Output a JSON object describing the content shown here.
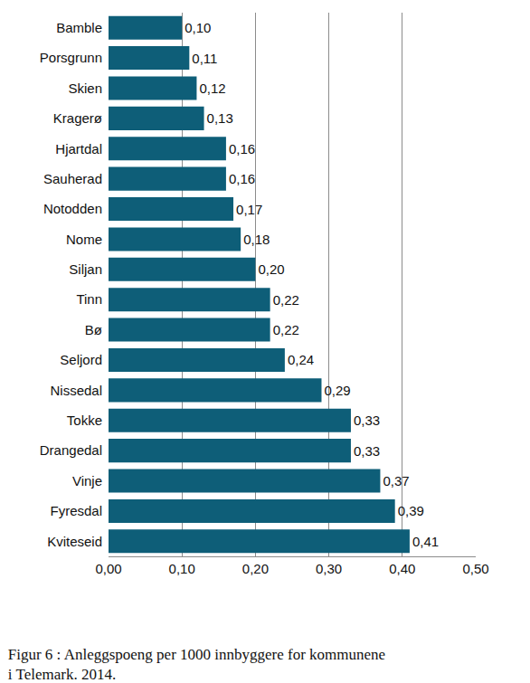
{
  "chart_data": {
    "type": "bar",
    "orientation": "horizontal",
    "title": "Figur 6 : Anleggspoeng per 1000 innbyggere for kommunene i Telemark. 2014.",
    "categories": [
      "Bamble",
      "Porsgrunn",
      "Skien",
      "Kragerø",
      "Hjartdal",
      "Sauherad",
      "Notodden",
      "Nome",
      "Siljan",
      "Tinn",
      "Bø",
      "Seljord",
      "Nissedal",
      "Tokke",
      "Drangedal",
      "Vinje",
      "Fyresdal",
      "Kviteseid"
    ],
    "values": [
      0.1,
      0.11,
      0.12,
      0.13,
      0.16,
      0.16,
      0.17,
      0.18,
      0.2,
      0.22,
      0.22,
      0.24,
      0.29,
      0.33,
      0.33,
      0.37,
      0.39,
      0.41
    ],
    "value_labels": [
      "0,10",
      "0,11",
      "0,12",
      "0,13",
      "0,16",
      "0,16",
      "0,17",
      "0,18",
      "0,20",
      "0,22",
      "0,22",
      "0,24",
      "0,29",
      "0,33",
      "0,33",
      "0,37",
      "0,39",
      "0,41"
    ],
    "data_labels": true,
    "color": "#0e5e78",
    "xlim": [
      0,
      0.5
    ],
    "xticks": [
      {
        "value": 0,
        "label": "0,00"
      },
      {
        "value": 0.1,
        "label": "0,10"
      },
      {
        "value": 0.2,
        "label": "0,20"
      },
      {
        "value": 0.3,
        "label": "0,30"
      },
      {
        "value": 0.4,
        "label": "0,40"
      },
      {
        "value": 0.5,
        "label": "0,50"
      }
    ],
    "grid": true
  }
}
